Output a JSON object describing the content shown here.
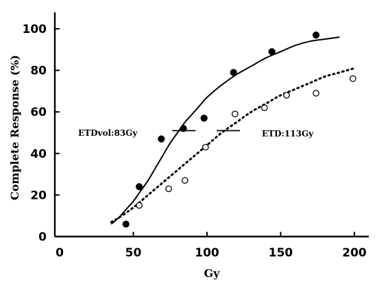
{
  "chart_data": {
    "type": "scatter",
    "title": "",
    "xlabel": "Gy",
    "ylabel": "Complete Response (%)",
    "xlim": [
      0,
      210
    ],
    "ylim": [
      0,
      100
    ],
    "xticks": [
      0,
      50,
      100,
      150,
      200
    ],
    "yticks": [
      0,
      20,
      40,
      60,
      80,
      100
    ],
    "xtick_labels": [
      "0",
      "50",
      "100",
      "150",
      "200"
    ],
    "ytick_labels": [
      "0",
      "20",
      "40",
      "60",
      "80",
      "100"
    ],
    "grid": false,
    "series": [
      {
        "marker": "filled-circle",
        "points": [
          [
            45,
            6
          ],
          [
            54,
            24
          ],
          [
            69,
            47
          ],
          [
            84,
            52
          ],
          [
            98,
            57
          ],
          [
            118,
            79
          ],
          [
            144,
            89
          ],
          [
            174,
            97
          ]
        ],
        "fit": {
          "style": "solid",
          "x": [
            35,
            40,
            45,
            50,
            55,
            60,
            65,
            70,
            75,
            80,
            85,
            90,
            95,
            100,
            110,
            120,
            130,
            140,
            150,
            160,
            170,
            180,
            190
          ],
          "y": [
            6,
            9,
            13,
            17,
            22,
            27,
            33,
            39,
            45,
            50,
            55,
            59,
            63,
            67,
            73,
            78,
            82,
            86,
            89,
            92,
            94,
            95,
            96
          ]
        },
        "etd": {
          "label": "ETDvol:83Gy",
          "x": 83,
          "y": 51
        }
      },
      {
        "marker": "open-circle",
        "points": [
          [
            54,
            15
          ],
          [
            74,
            23
          ],
          [
            85,
            27
          ],
          [
            99,
            43
          ],
          [
            119,
            59
          ],
          [
            139,
            62
          ],
          [
            154,
            68
          ],
          [
            174,
            69
          ],
          [
            199,
            76
          ]
        ],
        "fit": {
          "style": "dotted",
          "x": [
            35,
            40,
            50,
            60,
            70,
            80,
            90,
            100,
            110,
            120,
            130,
            140,
            150,
            160,
            170,
            180,
            190,
            200
          ],
          "y": [
            7,
            9,
            14,
            20,
            26,
            32,
            38,
            44,
            50,
            55,
            60,
            64,
            68,
            71,
            74,
            77,
            79,
            81
          ]
        },
        "etd": {
          "label": "ETD:113Gy",
          "x": 113,
          "y": 51
        }
      }
    ]
  }
}
